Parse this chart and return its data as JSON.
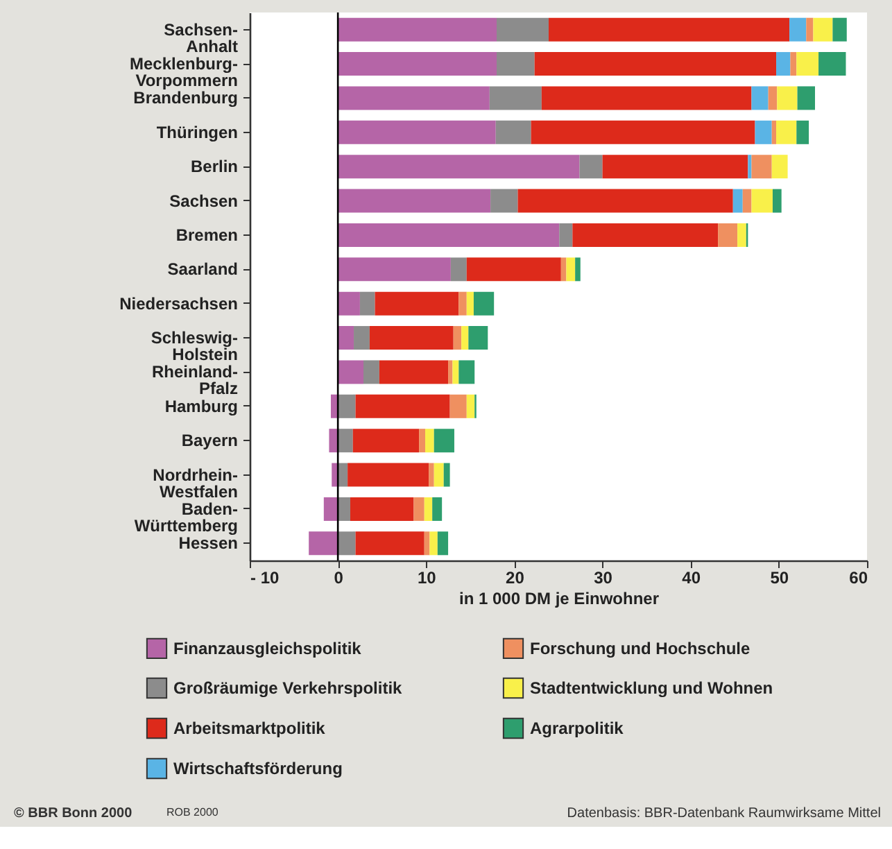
{
  "chart_data": {
    "type": "bar",
    "orientation": "horizontal",
    "stacked": true,
    "categories": [
      "Sachsen-Anhalt",
      "Mecklenburg-Vorpommern",
      "Brandenburg",
      "Thüringen",
      "Berlin",
      "Sachsen",
      "Bremen",
      "Saarland",
      "Niedersachsen",
      "Schleswig-Holstein",
      "Rheinland-Pfalz",
      "Hamburg",
      "Bayern",
      "Nordrhein-Westfalen",
      "Baden-Württemberg",
      "Hessen"
    ],
    "series": [
      {
        "name": "Finanzausgleichspolitik",
        "color": "#b565a7",
        "values": [
          18.0,
          18.0,
          17.2,
          17.9,
          27.4,
          17.3,
          25.1,
          12.8,
          2.5,
          1.8,
          2.9,
          -0.8,
          -1.0,
          -0.7,
          -1.6,
          -3.3
        ]
      },
      {
        "name": "Großräumige Verkehrspolitik",
        "color": "#8c8c8c",
        "values": [
          5.9,
          4.3,
          5.9,
          4.0,
          2.6,
          3.1,
          1.5,
          1.8,
          1.7,
          1.8,
          1.8,
          2.0,
          1.7,
          1.1,
          1.4,
          2.0
        ]
      },
      {
        "name": "Arbeitsmarktpolitik",
        "color": "#dd2a1b",
        "values": [
          27.3,
          27.4,
          23.8,
          25.4,
          16.5,
          24.4,
          16.5,
          10.7,
          9.5,
          9.5,
          7.8,
          10.7,
          7.5,
          9.2,
          7.2,
          7.8
        ]
      },
      {
        "name": "Wirtschaftsförderung",
        "color": "#5ab4e5",
        "values": [
          1.9,
          1.6,
          1.9,
          1.9,
          0.4,
          1.1,
          null,
          null,
          null,
          null,
          null,
          null,
          null,
          null,
          null,
          null
        ]
      },
      {
        "name": "Forschung und Hochschule",
        "color": "#ef9060",
        "values": [
          0.8,
          0.7,
          1.0,
          0.5,
          2.3,
          1.0,
          2.2,
          0.6,
          0.9,
          0.9,
          0.5,
          1.9,
          0.7,
          0.6,
          1.2,
          0.6
        ]
      },
      {
        "name": "Stadtentwicklung und Wohnen",
        "color": "#f9f04a",
        "values": [
          2.2,
          2.5,
          2.3,
          2.3,
          1.8,
          2.4,
          1.0,
          1.0,
          0.8,
          0.8,
          0.7,
          0.9,
          1.0,
          1.1,
          0.9,
          0.9
        ]
      },
      {
        "name": "Agrarpolitik",
        "color": "#2e9e6e",
        "values": [
          1.6,
          3.1,
          2.0,
          1.4,
          null,
          1.0,
          0.2,
          0.6,
          2.3,
          2.2,
          1.8,
          0.2,
          2.3,
          0.7,
          1.1,
          1.2
        ]
      }
    ],
    "xlabel": "in 1 000 DM je Einwohner",
    "xlim": [
      -10,
      60
    ],
    "xticks": [
      -10,
      0,
      10,
      20,
      30,
      40,
      50,
      60
    ],
    "ref_lines": [
      {
        "axis": "x",
        "value": 0,
        "color": "#000000"
      }
    ],
    "grid": false,
    "legend": "bottom",
    "annotations": [
      "© BBR Bonn 2000",
      "ROB 2000",
      "Datenbasis: BBR-Datenbank Raumwirksame Mittel"
    ]
  }
}
